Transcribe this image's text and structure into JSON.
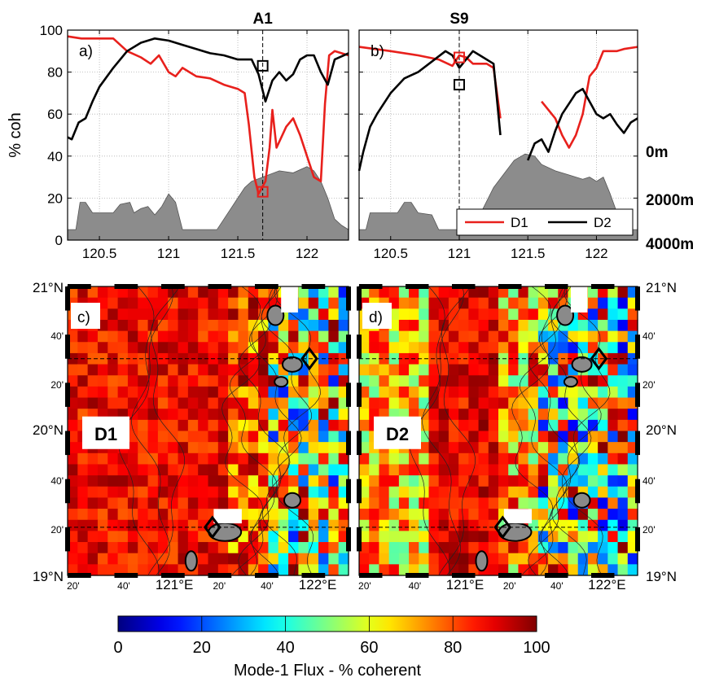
{
  "colors": {
    "d1": "#e8201c",
    "d2": "#000000",
    "bathy": "#8c8c8c",
    "map_red": "#e02010"
  },
  "chart_data": [
    {
      "panel": "a)",
      "type": "line",
      "title": "A1",
      "ylabel": "% coh",
      "ylim": [
        0,
        100
      ],
      "yticks": [
        "0",
        "20",
        "40",
        "60",
        "80",
        "100"
      ],
      "xticks": [
        "120.5",
        "121",
        "121.5",
        "122"
      ],
      "xtick_values": [
        120.5,
        121,
        121.5,
        122
      ],
      "xlim": [
        120.27,
        122.3
      ],
      "marker_x": 121.68,
      "squares": [
        {
          "series": "D2",
          "x": 121.68,
          "y": 83
        },
        {
          "series": "D1",
          "x": 121.68,
          "y": 23
        }
      ],
      "series": [
        {
          "name": "D1",
          "segments": [
            [
              [
                120.27,
                97
              ],
              [
                120.37,
                96
              ],
              [
                120.6,
                96
              ],
              [
                120.7,
                90
              ],
              [
                120.8,
                87
              ],
              [
                120.87,
                84
              ],
              [
                120.93,
                88
              ],
              [
                121.0,
                80
              ],
              [
                121.05,
                78
              ],
              [
                121.1,
                82
              ],
              [
                121.15,
                80
              ],
              [
                121.2,
                78
              ],
              [
                121.3,
                77
              ],
              [
                121.4,
                74
              ],
              [
                121.5,
                72
              ],
              [
                121.55,
                70
              ],
              [
                121.58,
                55
              ],
              [
                121.62,
                30
              ],
              [
                121.65,
                22
              ],
              [
                121.7,
                28
              ],
              [
                121.73,
                44
              ],
              [
                121.75,
                62
              ],
              [
                121.78,
                44
              ],
              [
                121.85,
                54
              ],
              [
                121.9,
                58
              ],
              [
                121.95,
                50
              ],
              [
                122.0,
                40
              ],
              [
                122.05,
                30
              ],
              [
                122.1,
                28
              ],
              [
                122.13,
                65
              ],
              [
                122.16,
                88
              ],
              [
                122.2,
                90
              ],
              [
                122.3,
                88
              ]
            ]
          ]
        },
        {
          "name": "D2",
          "segments": [
            [
              [
                120.27,
                49
              ],
              [
                120.3,
                48
              ],
              [
                120.35,
                56
              ],
              [
                120.4,
                58
              ],
              [
                120.45,
                66
              ],
              [
                120.5,
                73
              ],
              [
                120.6,
                82
              ],
              [
                120.7,
                90
              ],
              [
                120.8,
                94
              ],
              [
                120.9,
                96
              ],
              [
                121.0,
                95
              ],
              [
                121.1,
                93
              ],
              [
                121.2,
                91
              ],
              [
                121.3,
                89
              ],
              [
                121.4,
                88
              ],
              [
                121.5,
                86
              ],
              [
                121.6,
                86
              ],
              [
                121.65,
                79
              ],
              [
                121.7,
                66
              ],
              [
                121.75,
                76
              ],
              [
                121.8,
                80
              ],
              [
                121.85,
                76
              ],
              [
                121.9,
                79
              ],
              [
                121.95,
                86
              ],
              [
                122.0,
                88
              ],
              [
                122.05,
                88
              ],
              [
                122.1,
                80
              ],
              [
                122.15,
                74
              ],
              [
                122.2,
                86
              ],
              [
                122.3,
                89
              ]
            ]
          ]
        }
      ],
      "bathymetry_ylabels": [
        "0m",
        "2000m",
        "4000m"
      ],
      "bathymetry": [
        [
          120.27,
          5
        ],
        [
          120.33,
          5
        ],
        [
          120.36,
          18
        ],
        [
          120.4,
          18
        ],
        [
          120.45,
          13
        ],
        [
          120.55,
          13
        ],
        [
          120.6,
          13
        ],
        [
          120.65,
          17
        ],
        [
          120.72,
          18
        ],
        [
          120.75,
          13
        ],
        [
          120.8,
          15
        ],
        [
          120.85,
          16
        ],
        [
          120.9,
          12
        ],
        [
          120.95,
          16
        ],
        [
          121.0,
          22
        ],
        [
          121.05,
          18
        ],
        [
          121.1,
          5
        ],
        [
          121.35,
          5
        ],
        [
          121.4,
          10
        ],
        [
          121.5,
          20
        ],
        [
          121.55,
          25
        ],
        [
          121.6,
          28
        ],
        [
          121.68,
          30
        ],
        [
          121.8,
          33
        ],
        [
          121.9,
          32
        ],
        [
          122.0,
          35
        ],
        [
          122.05,
          33
        ],
        [
          122.1,
          28
        ],
        [
          122.15,
          20
        ],
        [
          122.2,
          10
        ],
        [
          122.25,
          7
        ],
        [
          122.3,
          5
        ]
      ]
    },
    {
      "panel": "b)",
      "type": "line",
      "title": "S9",
      "ylim": [
        0,
        100
      ],
      "xticks": [
        "120.5",
        "121",
        "121.5",
        "122"
      ],
      "xtick_values": [
        120.5,
        121,
        121.5,
        122
      ],
      "xlim": [
        120.27,
        122.3
      ],
      "marker_x": 121.0,
      "squares": [
        {
          "series": "D1",
          "x": 121.0,
          "y": 87
        },
        {
          "series": "D2",
          "x": 121.0,
          "y": 74
        }
      ],
      "legend": {
        "position": "lower-right",
        "entries": [
          "D1",
          "D2"
        ]
      },
      "series": [
        {
          "name": "D1",
          "segments": [
            [
              [
                120.27,
                92
              ],
              [
                120.5,
                90
              ],
              [
                120.7,
                88
              ],
              [
                120.85,
                86
              ],
              [
                120.95,
                83
              ],
              [
                121.0,
                88
              ],
              [
                121.05,
                87
              ],
              [
                121.1,
                84
              ],
              [
                121.2,
                84
              ],
              [
                121.25,
                82
              ],
              [
                121.3,
                58
              ]
            ],
            [
              [
                121.6,
                66
              ],
              [
                121.7,
                58
              ],
              [
                121.75,
                50
              ],
              [
                121.8,
                44
              ],
              [
                121.85,
                50
              ],
              [
                121.9,
                60
              ],
              [
                121.95,
                78
              ],
              [
                122.0,
                82
              ],
              [
                122.05,
                90
              ],
              [
                122.15,
                90
              ],
              [
                122.2,
                91
              ],
              [
                122.3,
                92
              ]
            ]
          ]
        },
        {
          "name": "D2",
          "segments": [
            [
              [
                120.27,
                33
              ],
              [
                120.3,
                42
              ],
              [
                120.35,
                54
              ],
              [
                120.4,
                60
              ],
              [
                120.5,
                70
              ],
              [
                120.6,
                77
              ],
              [
                120.7,
                80
              ],
              [
                120.8,
                85
              ],
              [
                120.9,
                90
              ],
              [
                120.95,
                88
              ],
              [
                121.0,
                82
              ],
              [
                121.05,
                86
              ],
              [
                121.1,
                90
              ],
              [
                121.15,
                88
              ],
              [
                121.25,
                84
              ],
              [
                121.3,
                50
              ]
            ],
            [
              [
                121.5,
                38
              ],
              [
                121.55,
                46
              ],
              [
                121.6,
                48
              ],
              [
                121.65,
                42
              ],
              [
                121.7,
                52
              ],
              [
                121.75,
                60
              ],
              [
                121.8,
                65
              ],
              [
                121.85,
                70
              ],
              [
                121.9,
                72
              ],
              [
                121.95,
                66
              ],
              [
                122.0,
                60
              ],
              [
                122.05,
                58
              ],
              [
                122.1,
                60
              ],
              [
                122.15,
                55
              ],
              [
                122.2,
                51
              ],
              [
                122.25,
                56
              ],
              [
                122.3,
                58
              ]
            ]
          ]
        }
      ],
      "bathymetry": [
        [
          120.27,
          5
        ],
        [
          120.32,
          5
        ],
        [
          120.35,
          13
        ],
        [
          120.45,
          13
        ],
        [
          120.55,
          13
        ],
        [
          120.6,
          18
        ],
        [
          120.65,
          18
        ],
        [
          120.7,
          13
        ],
        [
          120.8,
          12
        ],
        [
          120.85,
          5
        ],
        [
          121.05,
          5
        ],
        [
          121.15,
          12
        ],
        [
          121.25,
          25
        ],
        [
          121.4,
          38
        ],
        [
          121.48,
          41
        ],
        [
          121.55,
          40
        ],
        [
          121.6,
          36
        ],
        [
          121.7,
          33
        ],
        [
          121.8,
          31
        ],
        [
          121.85,
          30
        ],
        [
          121.9,
          29
        ],
        [
          121.95,
          30
        ],
        [
          122.0,
          28
        ],
        [
          122.05,
          30
        ],
        [
          122.1,
          22
        ],
        [
          122.15,
          13
        ],
        [
          122.2,
          12
        ],
        [
          122.25,
          5
        ],
        [
          122.3,
          5
        ]
      ]
    },
    {
      "panel": "c)",
      "type": "heatmap",
      "label": "D1",
      "lon_range": [
        120.33,
        122.27
      ],
      "lat_range": [
        19.0,
        21.0
      ],
      "lat_labels_left": [
        "21°N",
        "20°N",
        "19°N"
      ],
      "minor_lat_left": [
        "40'",
        "20'",
        "40'",
        "20'"
      ],
      "lon_labels": [
        "20'",
        "40'",
        "121°E",
        "20'",
        "40'",
        "122°E"
      ],
      "lat_lines": [
        19.333,
        20.5
      ],
      "diamonds": [
        [
          121.33,
          19.333
        ],
        [
          122.0,
          20.5
        ]
      ]
    },
    {
      "panel": "d)",
      "type": "heatmap",
      "label": "D2",
      "lon_range": [
        120.33,
        122.27
      ],
      "lat_range": [
        19.0,
        21.0
      ],
      "lat_labels_right": [
        "21°N",
        "20°N",
        "19°N"
      ],
      "minor_lat_right": [
        "40'",
        "20'",
        "40'",
        "20'"
      ],
      "lon_labels": [
        "20'",
        "40'",
        "121°E",
        "20'",
        "40'",
        "122°E"
      ],
      "lat_lines": [
        19.333,
        20.5
      ],
      "diamonds": [
        [
          121.33,
          19.333
        ],
        [
          122.0,
          20.5
        ]
      ]
    },
    {
      "type": "colorbar",
      "range": [
        0,
        100
      ],
      "ticks": [
        "0",
        "20",
        "40",
        "60",
        "80",
        "100"
      ],
      "label": "Mode-1 Flux - % coherent"
    }
  ]
}
